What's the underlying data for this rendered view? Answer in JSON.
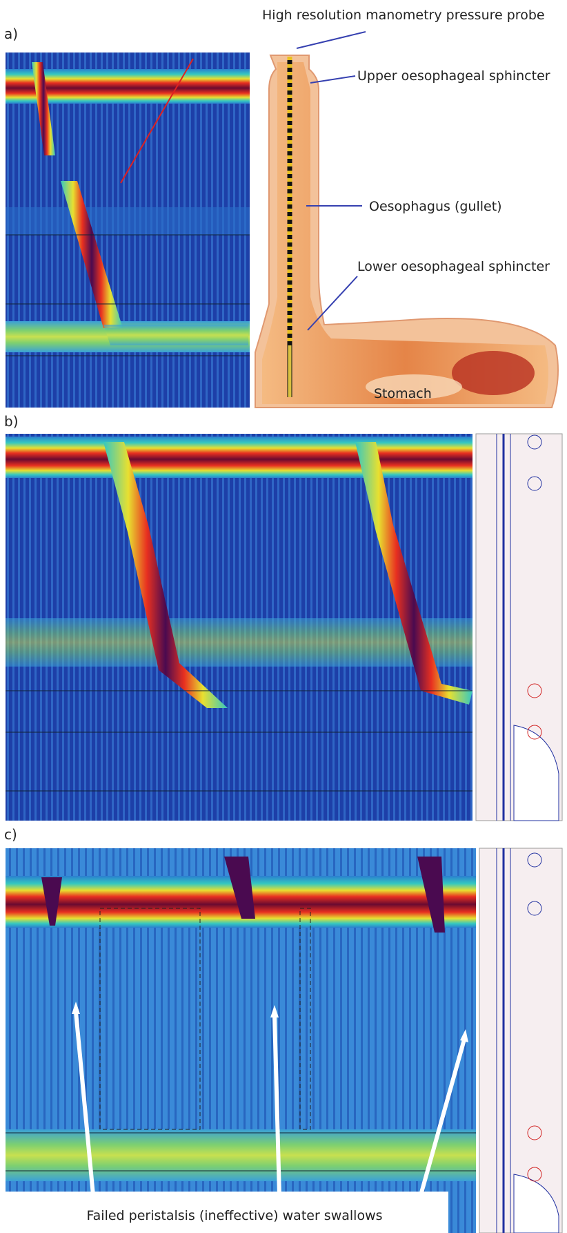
{
  "figure": {
    "panel_a": {
      "label": "a)",
      "annotations": [
        "High resolution manometry pressure probe",
        "Upper oesophageal sphincter",
        "Oesophagus (gullet)",
        "Lower oesophageal sphincter",
        "Stomach"
      ]
    },
    "panel_b": {
      "label": "b)"
    },
    "panel_c": {
      "label": "c)",
      "caption": "Failed peristalsis (ineffective) water swallows"
    }
  }
}
